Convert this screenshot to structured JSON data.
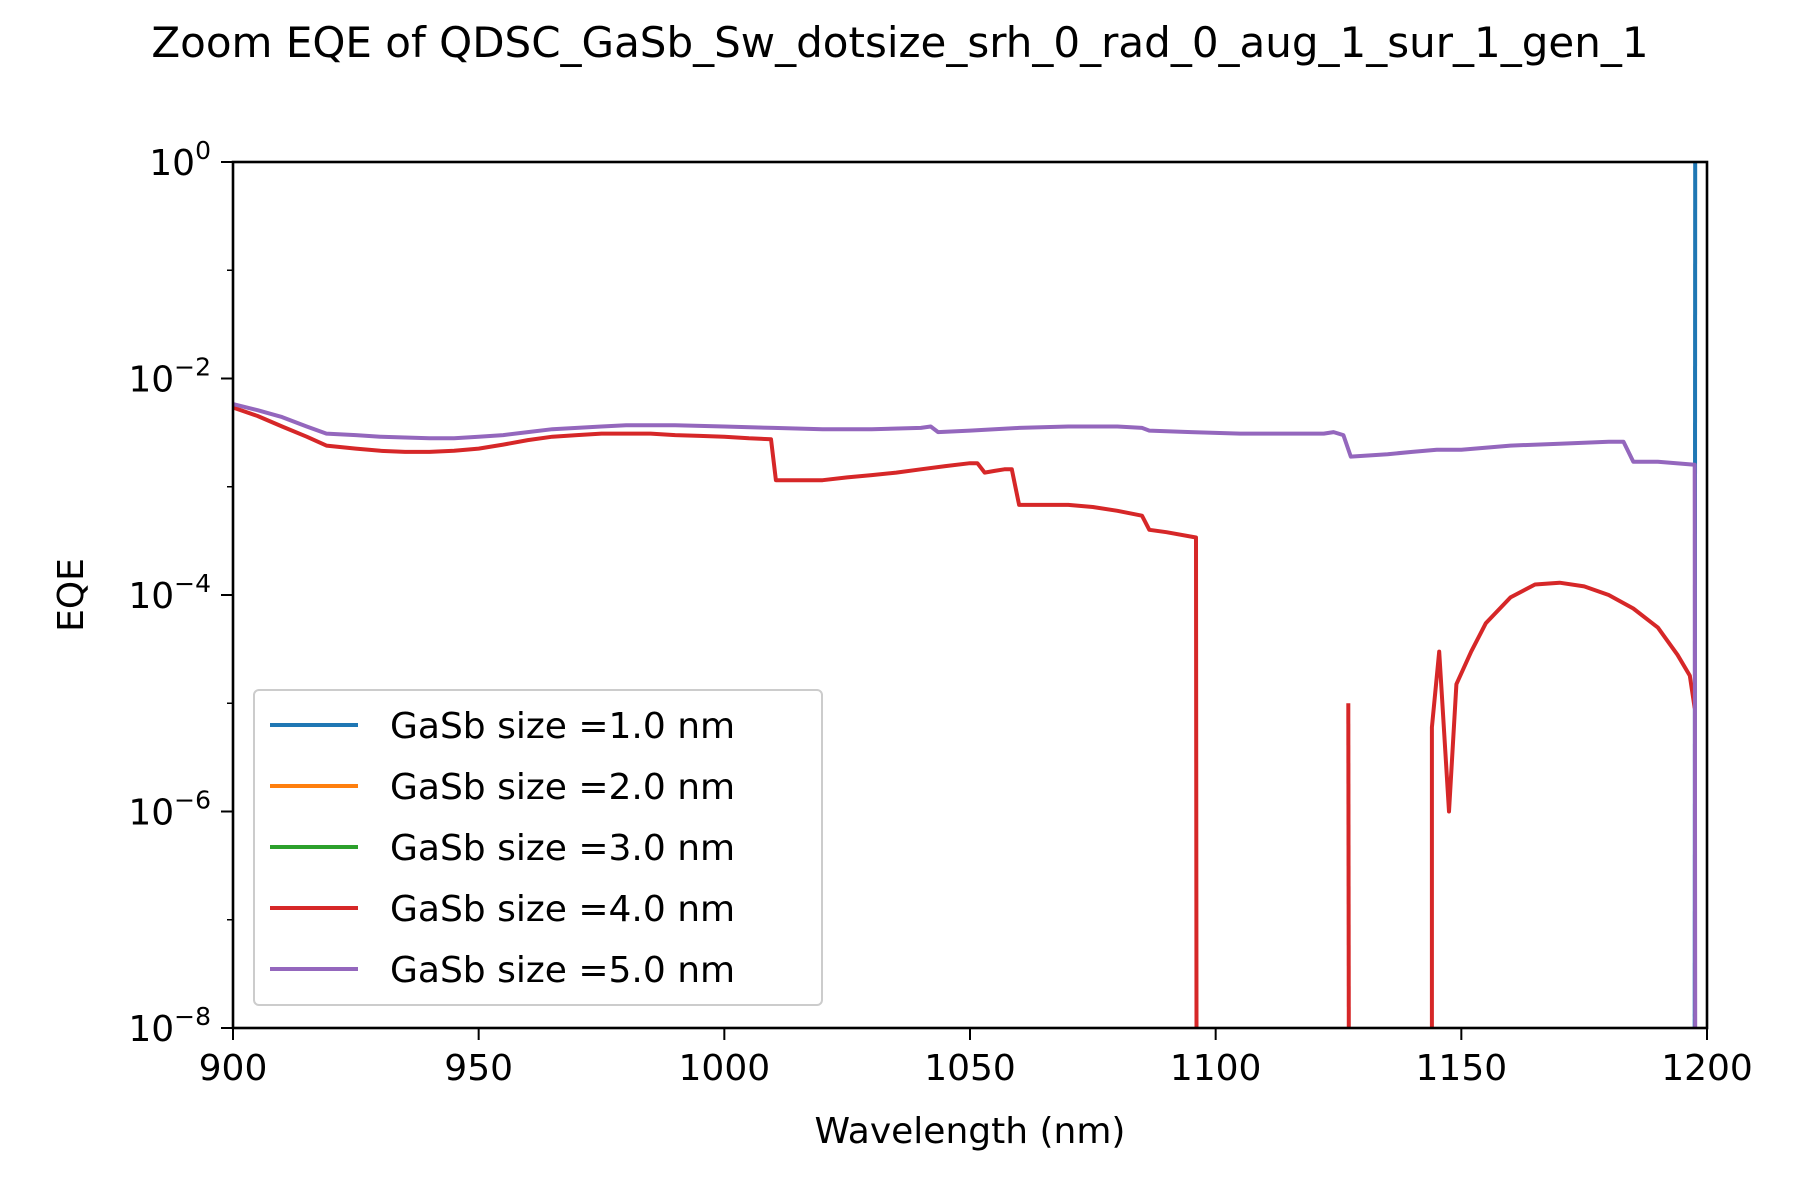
{
  "chart_data": {
    "type": "line",
    "title": "Zoom EQE of QDSC_GaSb_Sw_dotsize_srh_0_rad_0_aug_1_sur_1_gen_1",
    "xlabel": "Wavelength (nm)",
    "ylabel": "EQE",
    "xlim": [
      900,
      1200
    ],
    "ylim": [
      1e-08,
      1
    ],
    "yscale": "log",
    "x_ticks": [
      900,
      950,
      1000,
      1050,
      1100,
      1150,
      1200
    ],
    "x_tick_labels": [
      "900",
      "950",
      "1000",
      "1050",
      "1100",
      "1150",
      "1200"
    ],
    "y_ticks": [
      {
        "value": 1,
        "base": "10",
        "exp": "0"
      },
      {
        "value": 0.01,
        "base": "10",
        "exp": "−2"
      },
      {
        "value": 0.0001,
        "base": "10",
        "exp": "−4"
      },
      {
        "value": 1e-06,
        "base": "10",
        "exp": "−6"
      },
      {
        "value": 1e-08,
        "base": "10",
        "exp": "−8"
      }
    ],
    "grid": false,
    "legend_position": "lower-left",
    "series": [
      {
        "name": "GaSb size =1.0 nm",
        "color": "#1f77b4",
        "x": [
          1197.5,
          1197.6
        ],
        "y": [
          1e-08,
          1
        ]
      },
      {
        "name": "GaSb size =2.0 nm",
        "color": "#ff7f0e",
        "x": [],
        "y": []
      },
      {
        "name": "GaSb size =3.0 nm",
        "color": "#2ca02c",
        "x": [],
        "y": []
      },
      {
        "name": "GaSb size =4.0 nm",
        "color": "#d62728",
        "segments": [
          {
            "x": [
              900,
              905,
              910,
              915,
              919,
              925,
              930,
              935,
              940,
              945,
              950,
              955,
              960,
              965,
              970,
              975,
              980,
              985,
              990,
              995,
              1000,
              1005,
              1009.5,
              1010.5,
              1015,
              1020,
              1025,
              1030,
              1035,
              1040,
              1045,
              1050,
              1051.5,
              1053,
              1055,
              1057,
              1058.5,
              1060,
              1065,
              1070,
              1075,
              1080,
              1085,
              1086.5,
              1090,
              1096,
              1096.1
            ],
            "y": [
              0.0054,
              0.0045,
              0.0036,
              0.0029,
              0.0024,
              0.00225,
              0.00215,
              0.0021,
              0.0021,
              0.00215,
              0.00225,
              0.00245,
              0.0027,
              0.0029,
              0.003,
              0.0031,
              0.0031,
              0.0031,
              0.003,
              0.00295,
              0.0029,
              0.0028,
              0.00275,
              0.00115,
              0.00115,
              0.00115,
              0.00122,
              0.00128,
              0.00135,
              0.00145,
              0.00155,
              0.00165,
              0.00165,
              0.00135,
              0.0014,
              0.00145,
              0.00145,
              0.00068,
              0.00068,
              0.00068,
              0.00065,
              0.0006,
              0.00054,
              0.0004,
              0.00038,
              0.00034,
              1e-08
            ]
          },
          {
            "x": [
              1127,
              1127.1
            ],
            "y": [
              1e-05,
              1e-08
            ]
          },
          {
            "x": [
              1144,
              1144,
              1145.5,
              1147.5,
              1149,
              1152,
              1155,
              1160,
              1165,
              1170,
              1175,
              1180,
              1185,
              1190,
              1194,
              1196.5,
              1197.5
            ],
            "y": [
              1e-08,
              6e-06,
              3e-05,
              1e-06,
              1.5e-05,
              3e-05,
              5.5e-05,
              9.5e-05,
              0.000125,
              0.00013,
              0.00012,
              0.0001,
              7.5e-05,
              5e-05,
              2.8e-05,
              1.8e-05,
              9e-06
            ]
          }
        ]
      },
      {
        "name": "GaSb size =5.0 nm",
        "color": "#9467bd",
        "x": [
          900,
          905,
          910,
          915,
          919,
          925,
          930,
          935,
          940,
          945,
          950,
          955,
          960,
          965,
          970,
          975,
          980,
          985,
          990,
          1000,
          1010,
          1020,
          1030,
          1040,
          1042,
          1043.5,
          1050,
          1060,
          1070,
          1080,
          1085,
          1086.5,
          1095,
          1105,
          1115,
          1122,
          1124,
          1126,
          1127.5,
          1135,
          1140,
          1145,
          1150,
          1160,
          1170,
          1180,
          1183,
          1185,
          1190,
          1197.5,
          1197.6
        ],
        "y": [
          0.0058,
          0.0051,
          0.0044,
          0.0036,
          0.0031,
          0.003,
          0.0029,
          0.00285,
          0.0028,
          0.0028,
          0.0029,
          0.003,
          0.0032,
          0.0034,
          0.0035,
          0.0036,
          0.0037,
          0.0037,
          0.0037,
          0.0036,
          0.0035,
          0.0034,
          0.0034,
          0.0035,
          0.0036,
          0.0032,
          0.0033,
          0.0035,
          0.0036,
          0.0036,
          0.0035,
          0.0033,
          0.0032,
          0.0031,
          0.0031,
          0.0031,
          0.0032,
          0.003,
          0.0019,
          0.002,
          0.0021,
          0.0022,
          0.0022,
          0.0024,
          0.0025,
          0.0026,
          0.0026,
          0.0017,
          0.0017,
          0.0016,
          1e-08
        ]
      }
    ]
  }
}
